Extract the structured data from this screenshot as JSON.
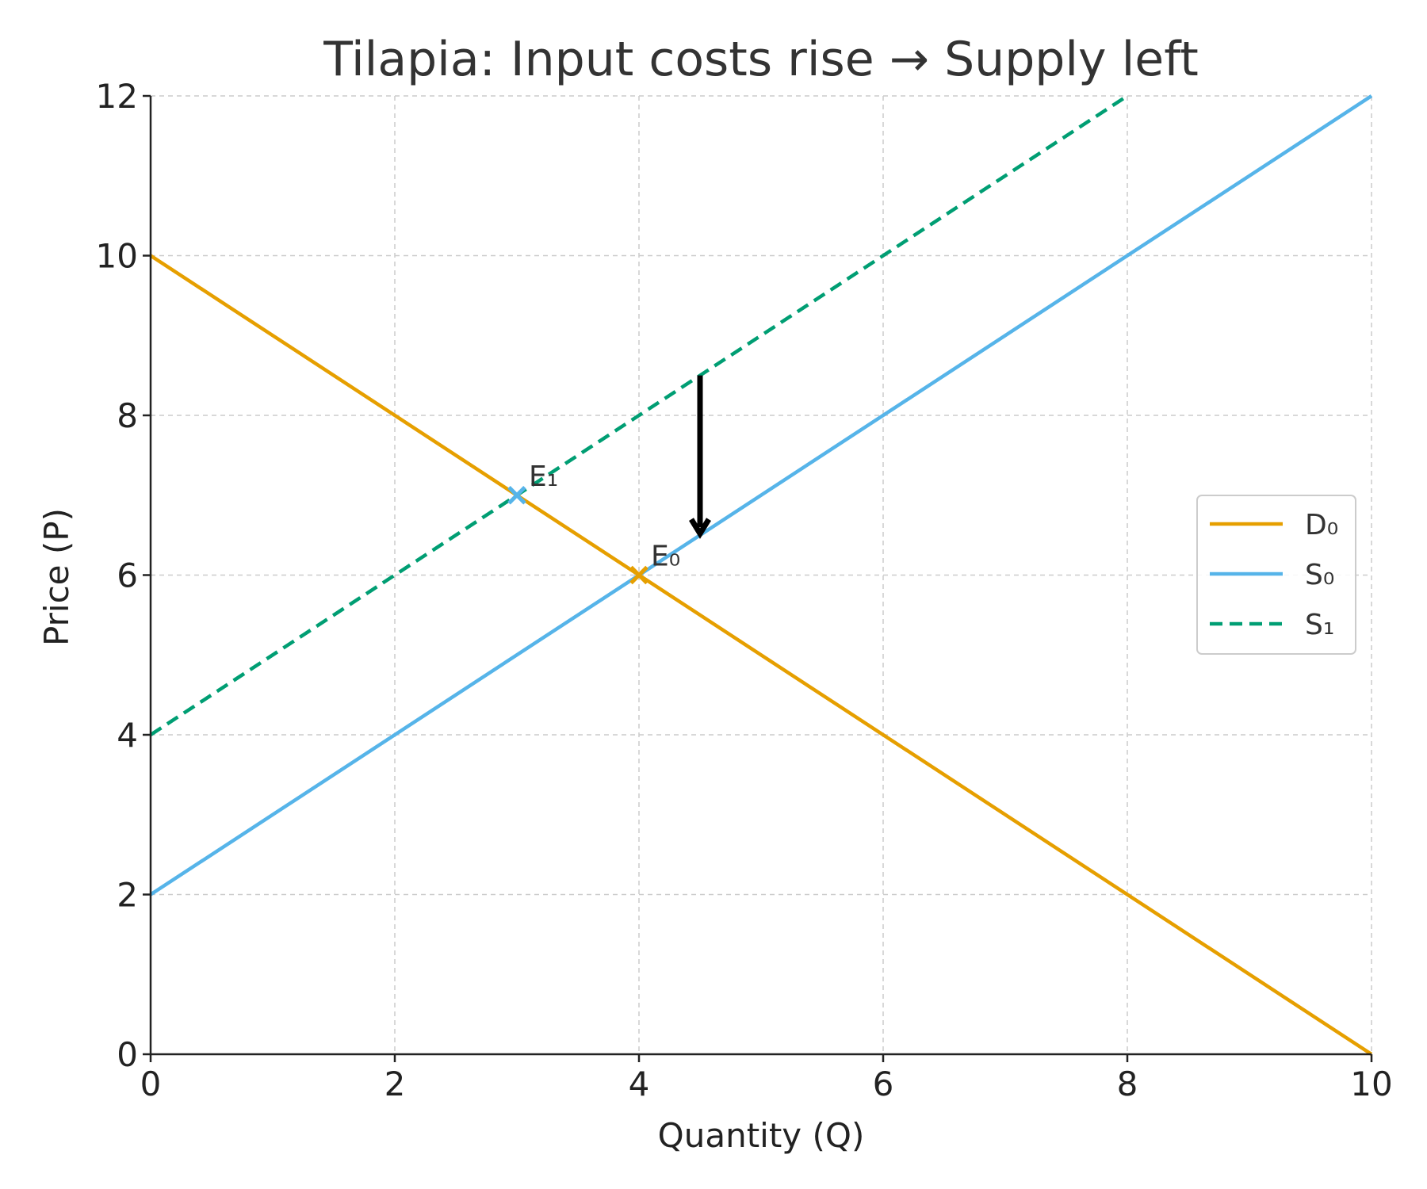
{
  "chart_data": {
    "type": "line",
    "title": "Tilapia: Input costs rise → Supply left",
    "xlabel": "Quantity (Q)",
    "ylabel": "Price (P)",
    "xlim": [
      0,
      10
    ],
    "ylim": [
      0,
      12
    ],
    "xticks": [
      "0",
      "2",
      "4",
      "6",
      "8",
      "10"
    ],
    "yticks": [
      "0",
      "2",
      "4",
      "6",
      "8",
      "10",
      "12"
    ],
    "grid": true,
    "legend_position": "center-right",
    "series": [
      {
        "name": "D₀",
        "color": "#E69F00",
        "style": "solid",
        "points": [
          [
            0,
            10
          ],
          [
            10,
            0
          ]
        ]
      },
      {
        "name": "S₀",
        "color": "#56B4E9",
        "style": "solid",
        "points": [
          [
            0,
            2
          ],
          [
            10,
            12
          ]
        ]
      },
      {
        "name": "S₁",
        "color": "#009E73",
        "style": "dashed",
        "points": [
          [
            0,
            4
          ],
          [
            8,
            12
          ]
        ]
      }
    ],
    "equilibria": [
      {
        "label": "E₀",
        "x": 4,
        "y": 6,
        "color": "#E69F00"
      },
      {
        "label": "E₁",
        "x": 3,
        "y": 7,
        "color": "#56B4E9"
      }
    ],
    "arrow": {
      "x": 4.5,
      "from_y": 8.5,
      "to_y": 6.5,
      "color": "#000000"
    }
  }
}
